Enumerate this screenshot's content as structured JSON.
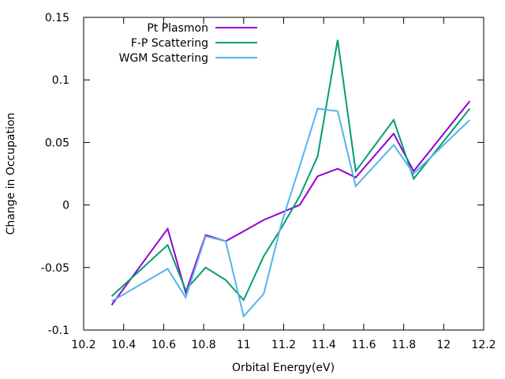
{
  "chart_data": {
    "type": "line",
    "xlabel": "Orbital Energy(eV)",
    "ylabel": "Change in Occupation",
    "xlim": [
      10.2,
      12.2
    ],
    "ylim": [
      -0.1,
      0.15
    ],
    "xticks": [
      10.2,
      10.4,
      10.6,
      10.8,
      11,
      11.2,
      11.4,
      11.6,
      11.8,
      12,
      12.2
    ],
    "xtick_labels": [
      "10.2",
      "10.4",
      "10.6",
      "10.8",
      "11",
      "11.2",
      "11.4",
      "11.6",
      "11.8",
      "12",
      "12.2"
    ],
    "yticks": [
      -0.1,
      -0.05,
      0,
      0.05,
      0.1,
      0.15
    ],
    "ytick_labels": [
      "-0.1",
      "-0.05",
      "0",
      "0.05",
      "0.1",
      "0.15"
    ],
    "grid": false,
    "legend_position": "top-left",
    "series": [
      {
        "name": "Pt Plasmon",
        "color": "#9400d3",
        "points": [
          [
            10.34,
            -0.08
          ],
          [
            10.62,
            -0.019
          ],
          [
            10.71,
            -0.07
          ],
          [
            10.81,
            -0.024
          ],
          [
            10.91,
            -0.029
          ],
          [
            11.0,
            -0.021
          ],
          [
            11.1,
            -0.012
          ],
          [
            11.19,
            -0.006
          ],
          [
            11.28,
            0.0
          ],
          [
            11.37,
            0.023
          ],
          [
            11.47,
            0.029
          ],
          [
            11.56,
            0.022
          ],
          [
            11.75,
            0.057
          ],
          [
            11.85,
            0.027
          ],
          [
            12.13,
            0.083
          ]
        ]
      },
      {
        "name": "F-P Scattering",
        "color": "#009e73",
        "points": [
          [
            10.34,
            -0.073
          ],
          [
            10.62,
            -0.032
          ],
          [
            10.71,
            -0.068
          ],
          [
            10.81,
            -0.05
          ],
          [
            10.91,
            -0.06
          ],
          [
            11.0,
            -0.076
          ],
          [
            11.1,
            -0.041
          ],
          [
            11.19,
            -0.018
          ],
          [
            11.28,
            0.007
          ],
          [
            11.37,
            0.039
          ],
          [
            11.47,
            0.132
          ],
          [
            11.56,
            0.027
          ],
          [
            11.75,
            0.068
          ],
          [
            11.85,
            0.021
          ],
          [
            12.13,
            0.077
          ]
        ]
      },
      {
        "name": "WGM Scattering",
        "color": "#56b4e9",
        "points": [
          [
            10.34,
            -0.077
          ],
          [
            10.62,
            -0.051
          ],
          [
            10.71,
            -0.074
          ],
          [
            10.81,
            -0.025
          ],
          [
            10.91,
            -0.029
          ],
          [
            11.0,
            -0.089
          ],
          [
            11.1,
            -0.071
          ],
          [
            11.19,
            -0.014
          ],
          [
            11.28,
            0.031
          ],
          [
            11.37,
            0.077
          ],
          [
            11.47,
            0.075
          ],
          [
            11.56,
            0.015
          ],
          [
            11.75,
            0.048
          ],
          [
            11.85,
            0.025
          ],
          [
            12.13,
            0.068
          ]
        ]
      }
    ]
  }
}
